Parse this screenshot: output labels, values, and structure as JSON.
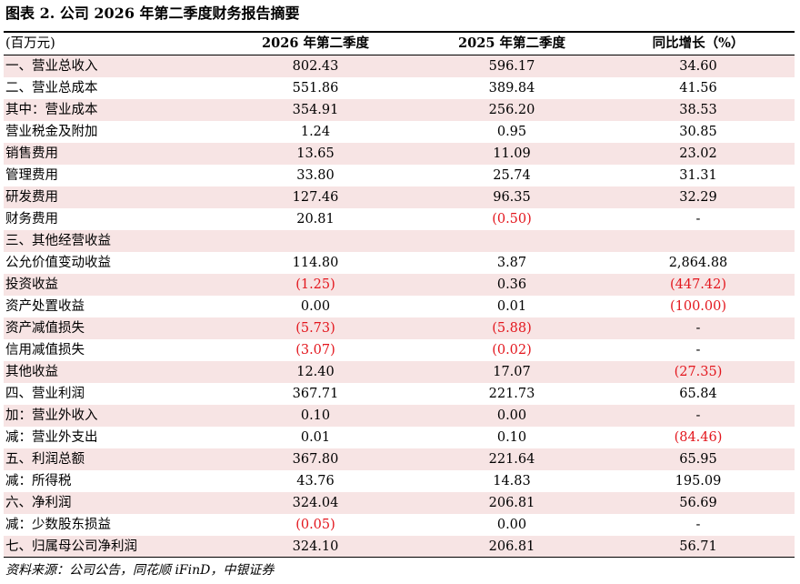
{
  "title": "图表 2. 公司 2026 年第二季度财务报告摘要",
  "header": {
    "unit": "(百万元)",
    "col1": "2026 年第二季度",
    "col2": "2025 年第二季度",
    "col3": "同比增长（%）"
  },
  "colors": {
    "shade": "#f7e4e4",
    "negative": "#e3161d",
    "text": "#000000"
  },
  "rows": [
    {
      "label": "一、营业总收入",
      "c1": "802.43",
      "c2": "596.17",
      "c3": "34.60"
    },
    {
      "label": "二、营业总成本",
      "c1": "551.86",
      "c2": "389.84",
      "c3": "41.56"
    },
    {
      "label": "其中：营业成本",
      "c1": "354.91",
      "c2": "256.20",
      "c3": "38.53"
    },
    {
      "label": "营业税金及附加",
      "c1": "1.24",
      "c2": "0.95",
      "c3": "30.85"
    },
    {
      "label": "销售费用",
      "c1": "13.65",
      "c2": "11.09",
      "c3": "23.02"
    },
    {
      "label": "管理费用",
      "c1": "33.80",
      "c2": "25.74",
      "c3": "31.31"
    },
    {
      "label": "研发费用",
      "c1": "127.46",
      "c2": "96.35",
      "c3": "32.29"
    },
    {
      "label": "财务费用",
      "c1": "20.81",
      "c2": "(0.50)",
      "c3": "-"
    },
    {
      "label": "三、其他经营收益",
      "c1": "",
      "c2": "",
      "c3": ""
    },
    {
      "label": "公允价值变动收益",
      "c1": "114.80",
      "c2": "3.87",
      "c3": "2,864.88"
    },
    {
      "label": "投资收益",
      "c1": "(1.25)",
      "c2": "0.36",
      "c3": "(447.42)"
    },
    {
      "label": "资产处置收益",
      "c1": "0.00",
      "c2": "0.01",
      "c3": "(100.00)"
    },
    {
      "label": "资产减值损失",
      "c1": "(5.73)",
      "c2": "(5.88)",
      "c3": "-"
    },
    {
      "label": "信用减值损失",
      "c1": "(3.07)",
      "c2": "(0.02)",
      "c3": "-"
    },
    {
      "label": "其他收益",
      "c1": "12.40",
      "c2": "17.07",
      "c3": "(27.35)"
    },
    {
      "label": "四、营业利润",
      "c1": "367.71",
      "c2": "221.73",
      "c3": "65.84"
    },
    {
      "label": "加：营业外收入",
      "c1": "0.10",
      "c2": "0.00",
      "c3": "-"
    },
    {
      "label": "减：营业外支出",
      "c1": "0.01",
      "c2": "0.10",
      "c3": "(84.46)"
    },
    {
      "label": "五、利润总额",
      "c1": "367.80",
      "c2": "221.64",
      "c3": "65.95"
    },
    {
      "label": "减：所得税",
      "c1": "43.76",
      "c2": "14.83",
      "c3": "195.09"
    },
    {
      "label": "六、净利润",
      "c1": "324.04",
      "c2": "206.81",
      "c3": "56.69"
    },
    {
      "label": "减：少数股东损益",
      "c1": "(0.05)",
      "c2": "0.00",
      "c3": "-"
    },
    {
      "label": "七、归属母公司净利润",
      "c1": "324.10",
      "c2": "206.81",
      "c3": "56.71"
    }
  ],
  "source": "资料来源：公司公告，同花顺 iFinD，中银证券"
}
